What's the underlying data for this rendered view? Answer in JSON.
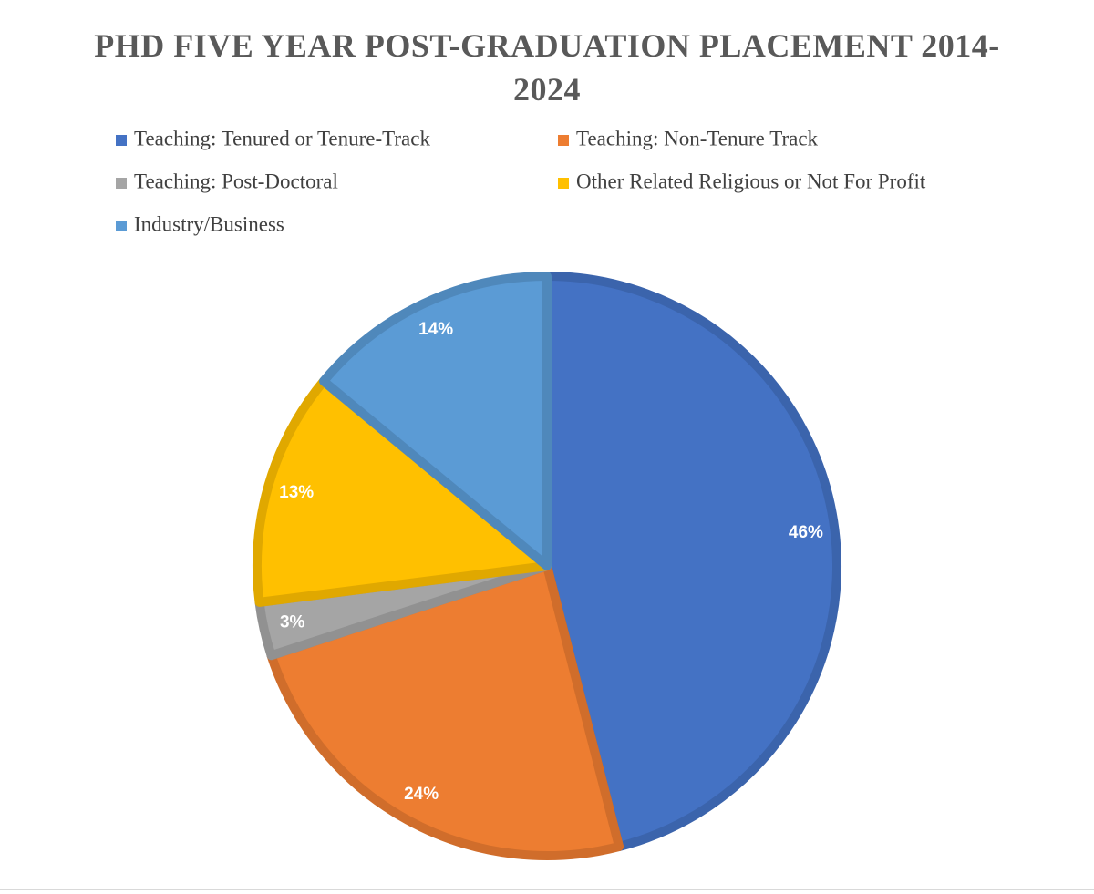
{
  "chart_data": {
    "type": "pie",
    "title": "PHD FIVE YEAR POST-GRADUATION PLACEMENT 2014-2024",
    "categories": [
      "Teaching: Tenured or Tenure-Track",
      "Teaching: Non-Tenure Track",
      "Teaching: Post-Doctoral",
      "Other Related Religious or Not For Profit",
      "Industry/Business"
    ],
    "values": [
      46,
      24,
      3,
      13,
      14
    ],
    "value_labels": [
      "46%",
      "24%",
      "3%",
      "13%",
      "14%"
    ],
    "colors": [
      "#4472c4",
      "#ed7d31",
      "#a5a5a5",
      "#ffc000",
      "#5b9bd5"
    ],
    "legend": "top"
  }
}
